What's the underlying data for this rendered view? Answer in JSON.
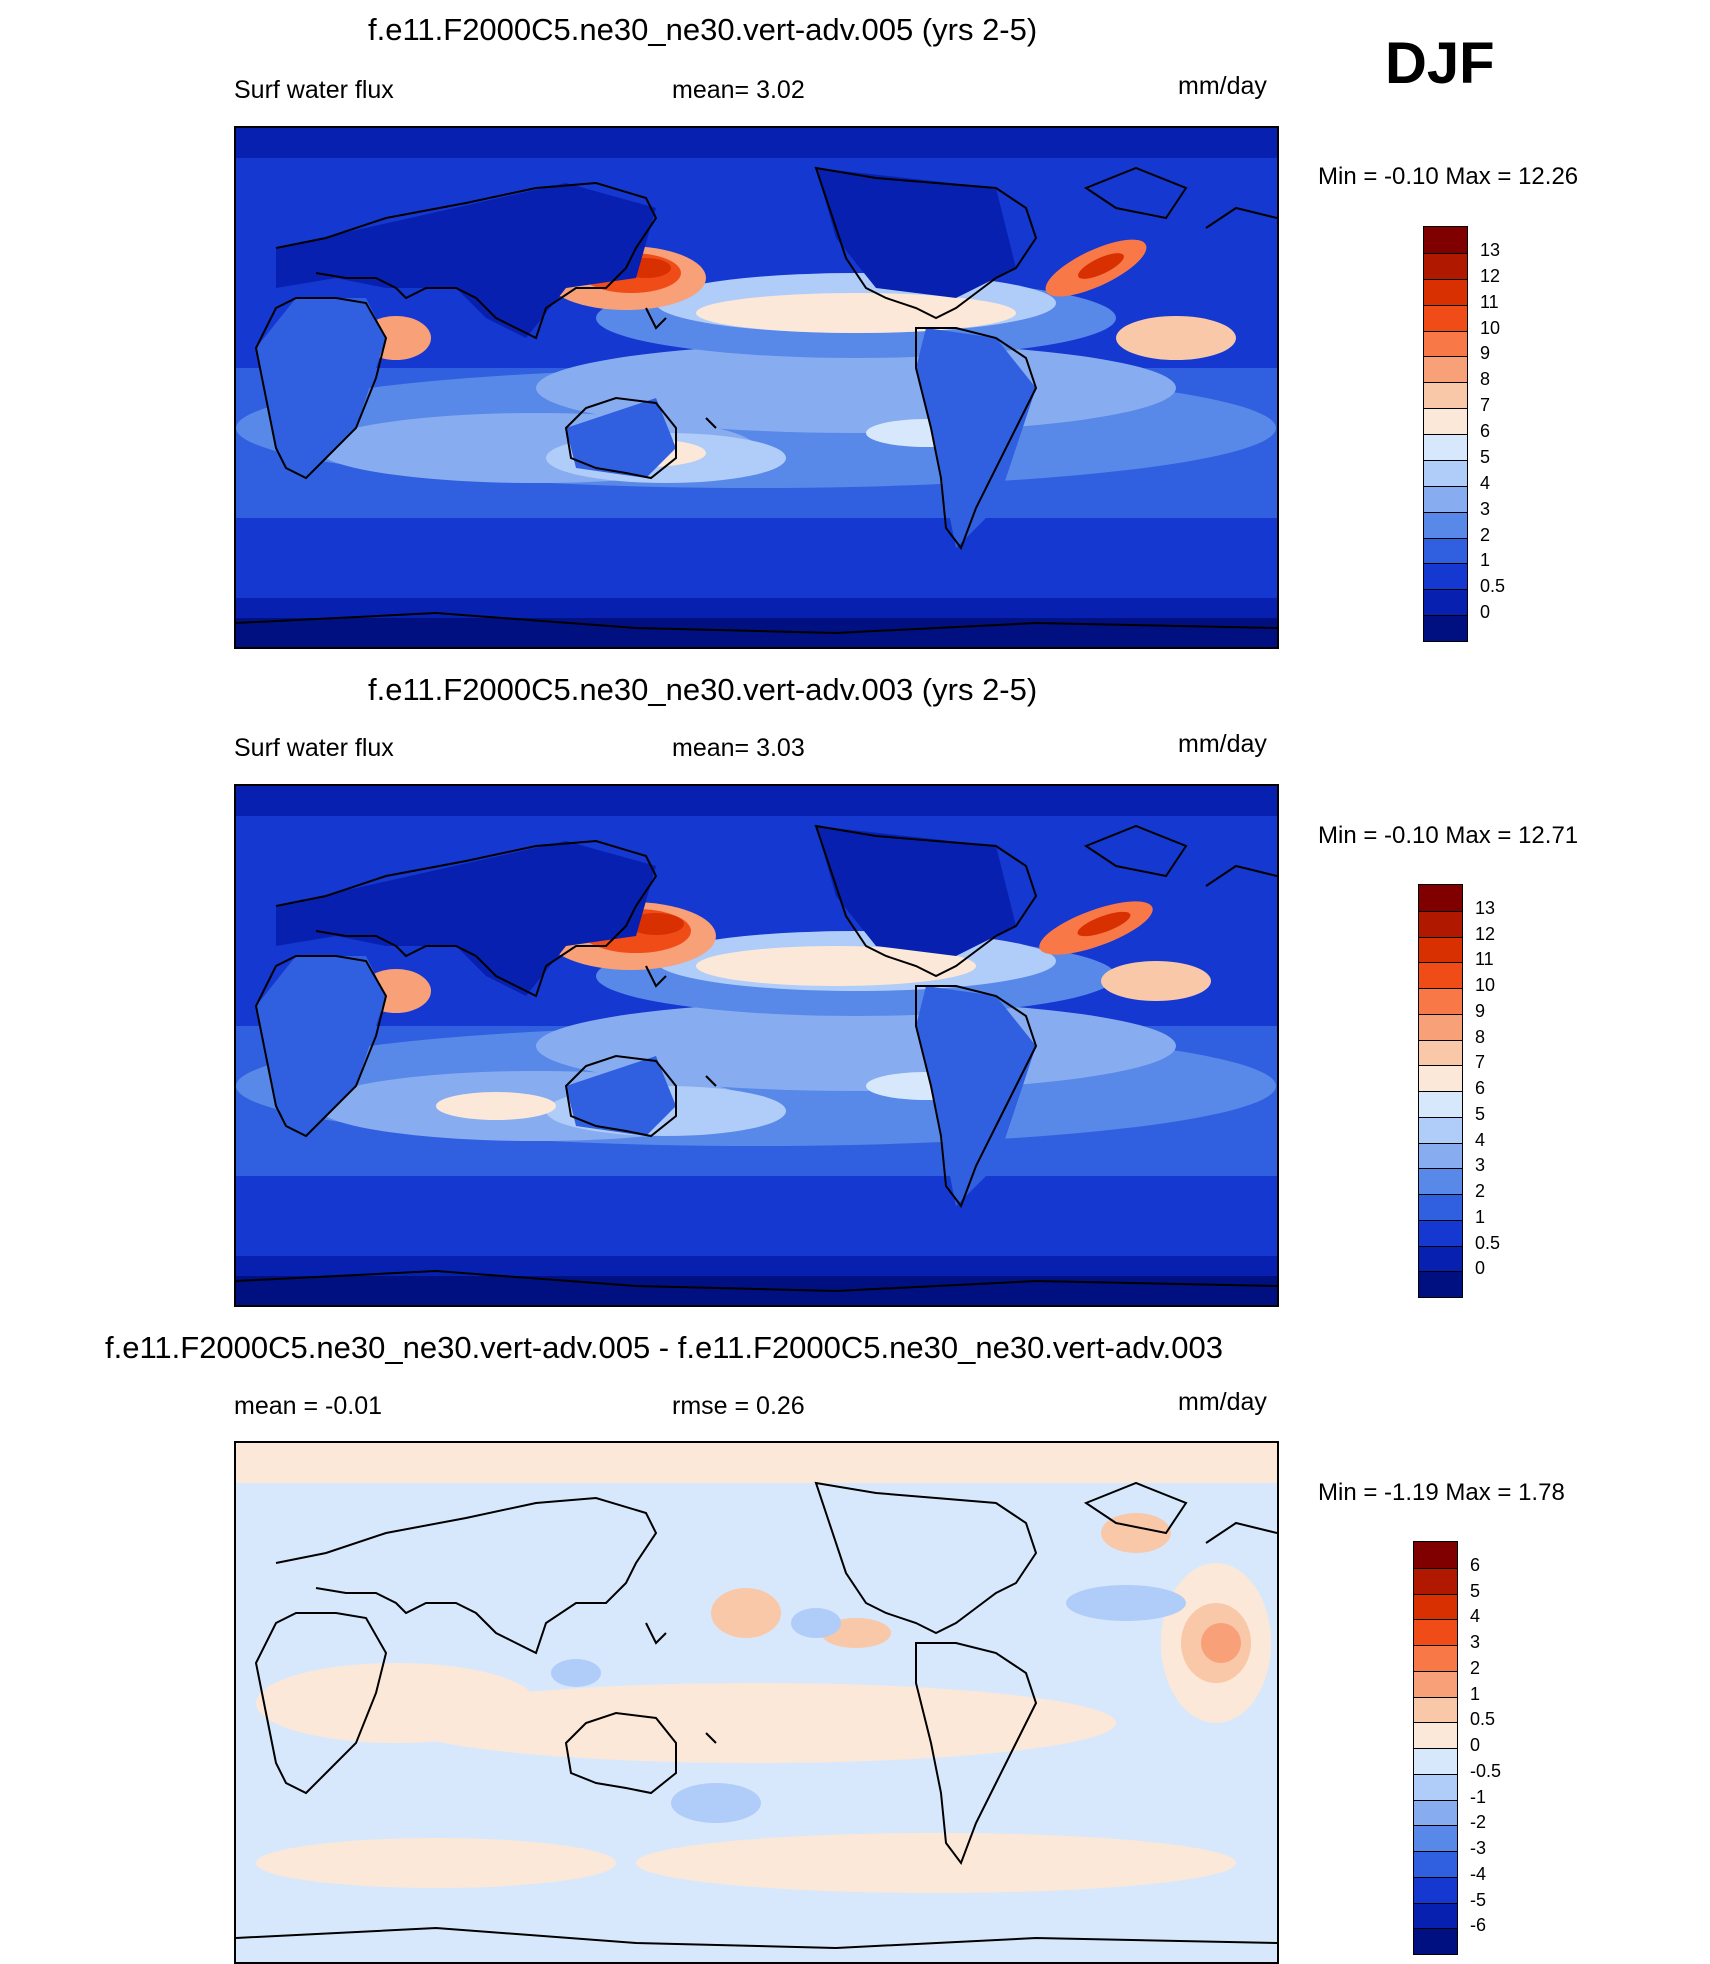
{
  "season": "DJF",
  "units": "mm/day",
  "panels": [
    {
      "title": "f.e11.F2000C5.ne30_ne30.vert-adv.005 (yrs 2-5)",
      "left_label": "Surf water flux",
      "center_label": "mean=   3.02",
      "minmax": "Min =  -0.10 Max =  12.26",
      "colorbar_labels": [
        "13",
        "12",
        "11",
        "10",
        "9",
        "8",
        "7",
        "6",
        "5",
        "4",
        "3",
        "2",
        "1",
        "0.5",
        "0"
      ],
      "colorbar_colors": [
        "#800000",
        "#b01800",
        "#d83000",
        "#f04c18",
        "#f87848",
        "#f8a078",
        "#f8c8a8",
        "#fce8d8",
        "#d8e8fc",
        "#b0ccf8",
        "#88acf0",
        "#5888e8",
        "#3060e0",
        "#1438d0",
        "#0820b0",
        "#001080"
      ]
    },
    {
      "title": "f.e11.F2000C5.ne30_ne30.vert-adv.003 (yrs 2-5)",
      "left_label": "Surf water flux",
      "center_label": "mean=   3.03",
      "minmax": "Min =  -0.10 Max =  12.71",
      "colorbar_labels": [
        "13",
        "12",
        "11",
        "10",
        "9",
        "8",
        "7",
        "6",
        "5",
        "4",
        "3",
        "2",
        "1",
        "0.5",
        "0"
      ],
      "colorbar_colors": [
        "#800000",
        "#b01800",
        "#d83000",
        "#f04c18",
        "#f87848",
        "#f8a078",
        "#f8c8a8",
        "#fce8d8",
        "#d8e8fc",
        "#b0ccf8",
        "#88acf0",
        "#5888e8",
        "#3060e0",
        "#1438d0",
        "#0820b0",
        "#001080"
      ]
    },
    {
      "title": "f.e11.F2000C5.ne30_ne30.vert-adv.005 - f.e11.F2000C5.ne30_ne30.vert-adv.003",
      "left_label": "mean =  -0.01",
      "center_label": "rmse =    0.26",
      "minmax": "Min =  -1.19 Max =    1.78",
      "colorbar_labels": [
        "6",
        "5",
        "4",
        "3",
        "2",
        "1",
        "0.5",
        "0",
        "-0.5",
        "-1",
        "-2",
        "-3",
        "-4",
        "-5",
        "-6"
      ],
      "colorbar_colors": [
        "#800000",
        "#b01800",
        "#d83000",
        "#f04c18",
        "#f87848",
        "#f8a078",
        "#f8c8a8",
        "#fce8d8",
        "#d8e8fc",
        "#b0ccf8",
        "#88acf0",
        "#5888e8",
        "#3060e0",
        "#1438d0",
        "#0820b0",
        "#001080"
      ]
    }
  ]
}
